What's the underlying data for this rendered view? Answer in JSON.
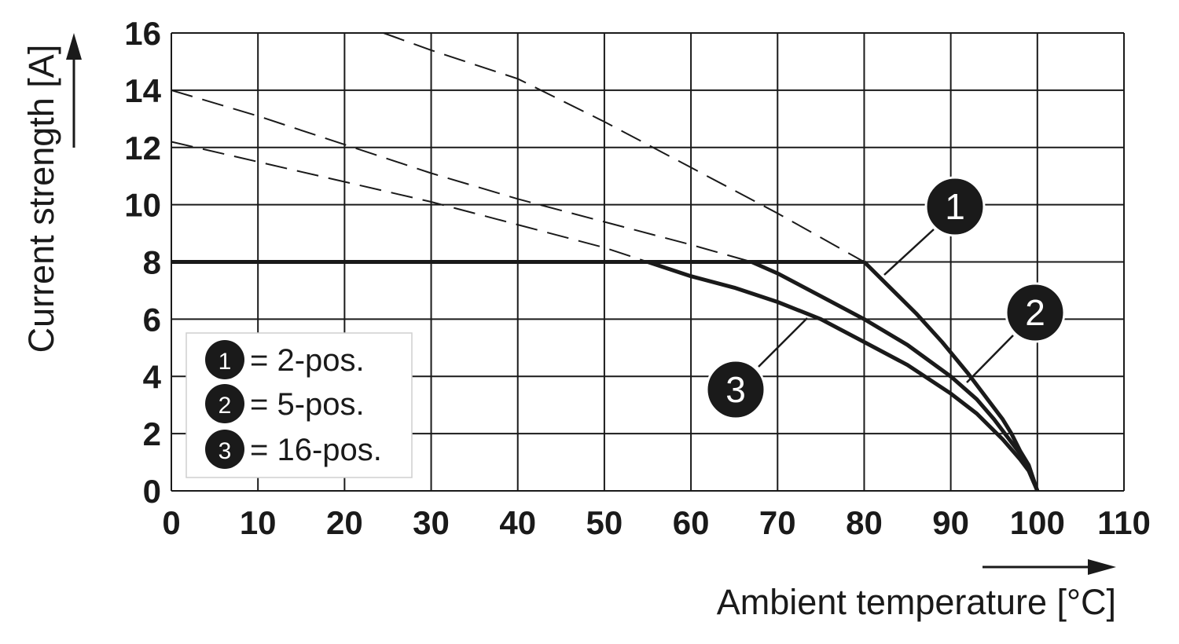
{
  "chart_data": {
    "type": "line",
    "xlabel": "Ambient temperature [°C]",
    "ylabel": "Current strength [A]",
    "xlim": [
      0,
      110
    ],
    "ylim": [
      0,
      16
    ],
    "xticks": [
      0,
      10,
      20,
      30,
      40,
      50,
      60,
      70,
      80,
      90,
      100,
      110
    ],
    "yticks": [
      0,
      2,
      4,
      6,
      8,
      10,
      12,
      14,
      16
    ],
    "grid": true,
    "legend_position": "bottom-left",
    "legend": [
      {
        "marker": "1",
        "label": "= 2-pos."
      },
      {
        "marker": "2",
        "label": "= 5-pos."
      },
      {
        "marker": "3",
        "label": "= 16-pos."
      }
    ],
    "series": [
      {
        "marker": "1",
        "derated_x": [
          80,
          83,
          86,
          89,
          92,
          94,
          96,
          97,
          98,
          99,
          100
        ],
        "derated_y": [
          8.0,
          7.1,
          6.2,
          5.2,
          4.1,
          3.3,
          2.5,
          2.0,
          1.4,
          0.9,
          0
        ],
        "dashed_x": [
          24.5,
          30,
          40,
          50,
          60,
          70,
          80
        ],
        "dashed_y": [
          16.0,
          15.4,
          14.4,
          12.9,
          11.3,
          9.7,
          8.0
        ]
      },
      {
        "marker": "2",
        "derated_x": [
          67,
          70,
          75,
          80,
          85,
          90,
          93,
          95,
          97,
          98,
          99,
          100
        ],
        "derated_y": [
          8.0,
          7.6,
          6.8,
          6.0,
          5.1,
          4.0,
          3.2,
          2.5,
          1.7,
          1.3,
          0.8,
          0
        ],
        "dashed_x": [
          0,
          10,
          20,
          30,
          40,
          50,
          60,
          67
        ],
        "dashed_y": [
          14.0,
          13.1,
          12.1,
          11.1,
          10.2,
          9.4,
          8.6,
          8.0
        ]
      },
      {
        "marker": "3",
        "derated_x": [
          55,
          60,
          65,
          70,
          75,
          80,
          85,
          90,
          93,
          96,
          98,
          99,
          100
        ],
        "derated_y": [
          8.0,
          7.5,
          7.1,
          6.6,
          6.0,
          5.2,
          4.4,
          3.4,
          2.7,
          1.8,
          1.1,
          0.7,
          0
        ],
        "dashed_x": [
          0,
          10,
          20,
          30,
          40,
          50,
          55
        ],
        "dashed_y": [
          12.2,
          11.5,
          10.8,
          10.1,
          9.3,
          8.5,
          8.0
        ]
      }
    ],
    "limit_line": {
      "y": 8,
      "x_start": 0,
      "x_end": 80
    }
  }
}
